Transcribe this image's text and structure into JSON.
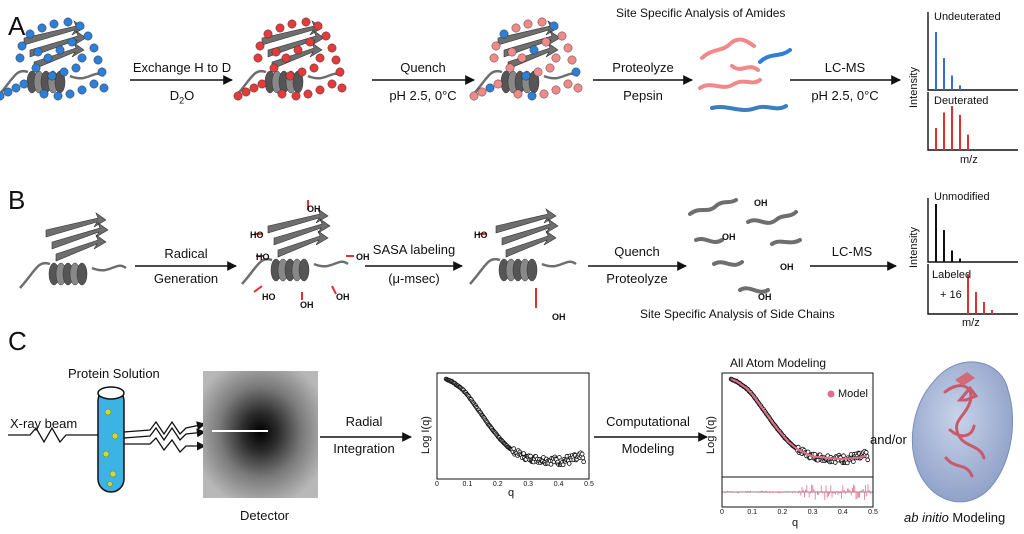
{
  "panels": {
    "a": {
      "letter": "A",
      "step1": {
        "top": "Exchange H to D",
        "bottom": "D",
        "sub": "2",
        "tail": "O"
      },
      "step2": {
        "top": "Quench",
        "bottom": "pH 2.5, 0°C"
      },
      "step3": {
        "top": "Proteolyze",
        "bottom": "Pepsin"
      },
      "step4": {
        "top": "LC-MS",
        "bottom": "pH 2.5, 0°C"
      },
      "title": "Site Specific Analysis of Amides",
      "spectrum": {
        "top_label": "Undeuterated",
        "bottom_label": "Deuterated",
        "y_label": "Intensity",
        "x_label": "m/z",
        "top_color": "#2f6fd6",
        "bottom_color": "#e03030",
        "top_peaks": [
          1.0,
          0.55,
          0.25,
          0.08
        ],
        "bottom_peaks": [
          0.5,
          0.85,
          1.0,
          0.8,
          0.35
        ]
      }
    },
    "b": {
      "letter": "B",
      "step1": {
        "top": "Radical",
        "bottom": "Generation"
      },
      "step2": {
        "top": "SASA labeling",
        "bottom": "(μ-msec)"
      },
      "step3": {
        "top": "Quench",
        "bottom": "Proteolyze"
      },
      "step4": {
        "top": "LC-MS"
      },
      "caption": "Site Specific Analysis of Side Chains",
      "oh": [
        "OH",
        "HO",
        "HO",
        "OH",
        "HO",
        "OH",
        "OH",
        "HO",
        "OH",
        "OH",
        "OH",
        "OH",
        "OH"
      ],
      "spectrum": {
        "top_label": "Unmodified",
        "bottom_label": "Labeled",
        "shift": "+ 16",
        "y_label": "Intensity",
        "x_label": "m/z",
        "top_color": "#111111",
        "bottom_color": "#e03030",
        "top_peaks": [
          1.0,
          0.55,
          0.2,
          0.06
        ],
        "bottom_peaks": [
          1.0,
          0.55,
          0.3,
          0.1
        ]
      }
    },
    "c": {
      "letter": "C",
      "sample_label": "Protein Solution",
      "beam_label": "X-ray beam",
      "detector_label": "Detector",
      "step1": {
        "top": "Radial",
        "bottom": "Integration"
      },
      "step2": {
        "top": "Computational",
        "bottom": "Modeling"
      },
      "modeling_title": "All Atom Modeling",
      "legend": "Model",
      "andor": "and/or",
      "ab_initio": {
        "italic": "ab initio",
        "rest": " Modeling"
      },
      "accent": "#e36b8a"
    }
  },
  "chart_data": [
    {
      "type": "scatter",
      "title": "",
      "xlabel": "q",
      "ylabel": "Log I(q)",
      "xlim": [
        0,
        0.5
      ],
      "xticks": [
        "0",
        "0.1",
        "0.2",
        "0.3",
        "0.4",
        "0.5"
      ],
      "series": [
        {
          "x": [
            0.03,
            0.05,
            0.08,
            0.1,
            0.12,
            0.15,
            0.18,
            0.2,
            0.22,
            0.25,
            0.28,
            0.3,
            0.33,
            0.36,
            0.4,
            0.43,
            0.46,
            0.48
          ],
          "y": [
            1.0,
            0.97,
            0.9,
            0.83,
            0.74,
            0.6,
            0.46,
            0.38,
            0.3,
            0.22,
            0.17,
            0.14,
            0.13,
            0.12,
            0.11,
            0.12,
            0.13,
            0.15
          ]
        }
      ]
    },
    {
      "type": "scatter",
      "title": "All Atom Modeling",
      "xlabel": "q",
      "ylabel": "Log I(q)",
      "xlim": [
        0,
        0.5
      ],
      "xticks": [
        "0",
        "0.1",
        "0.2",
        "0.3",
        "0.4",
        "0.5"
      ],
      "legend": [
        "Model"
      ],
      "series": [
        {
          "x": [
            0.03,
            0.05,
            0.08,
            0.1,
            0.12,
            0.15,
            0.18,
            0.2,
            0.22,
            0.25,
            0.28,
            0.3,
            0.33,
            0.36,
            0.4,
            0.43,
            0.46,
            0.48
          ],
          "y": [
            1.0,
            0.97,
            0.9,
            0.83,
            0.74,
            0.6,
            0.46,
            0.38,
            0.3,
            0.22,
            0.17,
            0.14,
            0.13,
            0.12,
            0.11,
            0.12,
            0.13,
            0.15
          ]
        }
      ]
    }
  ]
}
